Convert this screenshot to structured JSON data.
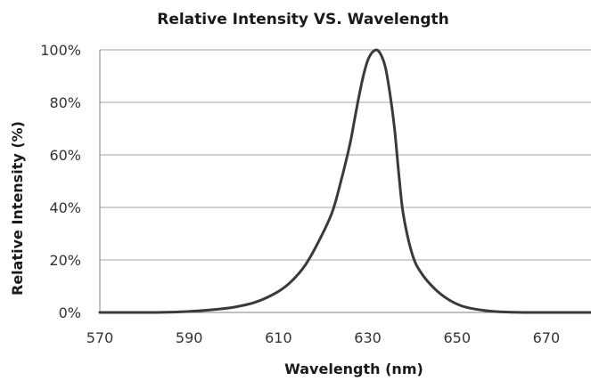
{
  "chart_data": {
    "type": "line",
    "title": "Relative Intensity  VS. Wavelength",
    "xlabel": "Wavelength (nm)",
    "ylabel": "Relative Intensity (%)",
    "xlim": [
      570,
      680
    ],
    "ylim": [
      0,
      100
    ],
    "x_ticks": [
      "570",
      "590",
      "610",
      "630",
      "650",
      "670"
    ],
    "x_tick_values": [
      570,
      590,
      610,
      630,
      650,
      670
    ],
    "y_ticks": [
      "0%",
      "20%",
      "40%",
      "60%",
      "80%",
      "100%"
    ],
    "y_tick_values": [
      0,
      20,
      40,
      60,
      80,
      100
    ],
    "grid": "horizontal",
    "line_color": "#3a3a3a",
    "grid_color": "#a6a6a6",
    "series": [
      {
        "x": [
          570,
          580,
          585,
          590,
          595,
          600,
          605,
          610,
          613,
          616,
          619,
          622,
          624,
          626,
          627,
          628,
          629,
          630,
          631,
          632,
          633,
          634,
          635,
          636,
          637,
          638,
          640,
          642,
          645,
          648,
          651,
          654,
          657,
          660,
          665,
          670,
          680
        ],
        "y": [
          0,
          0,
          0.1,
          0.4,
          1.0,
          2.0,
          4.0,
          8.0,
          12,
          18,
          27,
          38,
          50,
          64,
          73,
          82,
          90,
          96,
          99,
          100,
          98,
          93,
          83,
          70,
          52,
          37,
          22,
          15,
          9,
          5,
          2.5,
          1.3,
          0.6,
          0.2,
          0,
          0,
          0
        ]
      }
    ]
  }
}
